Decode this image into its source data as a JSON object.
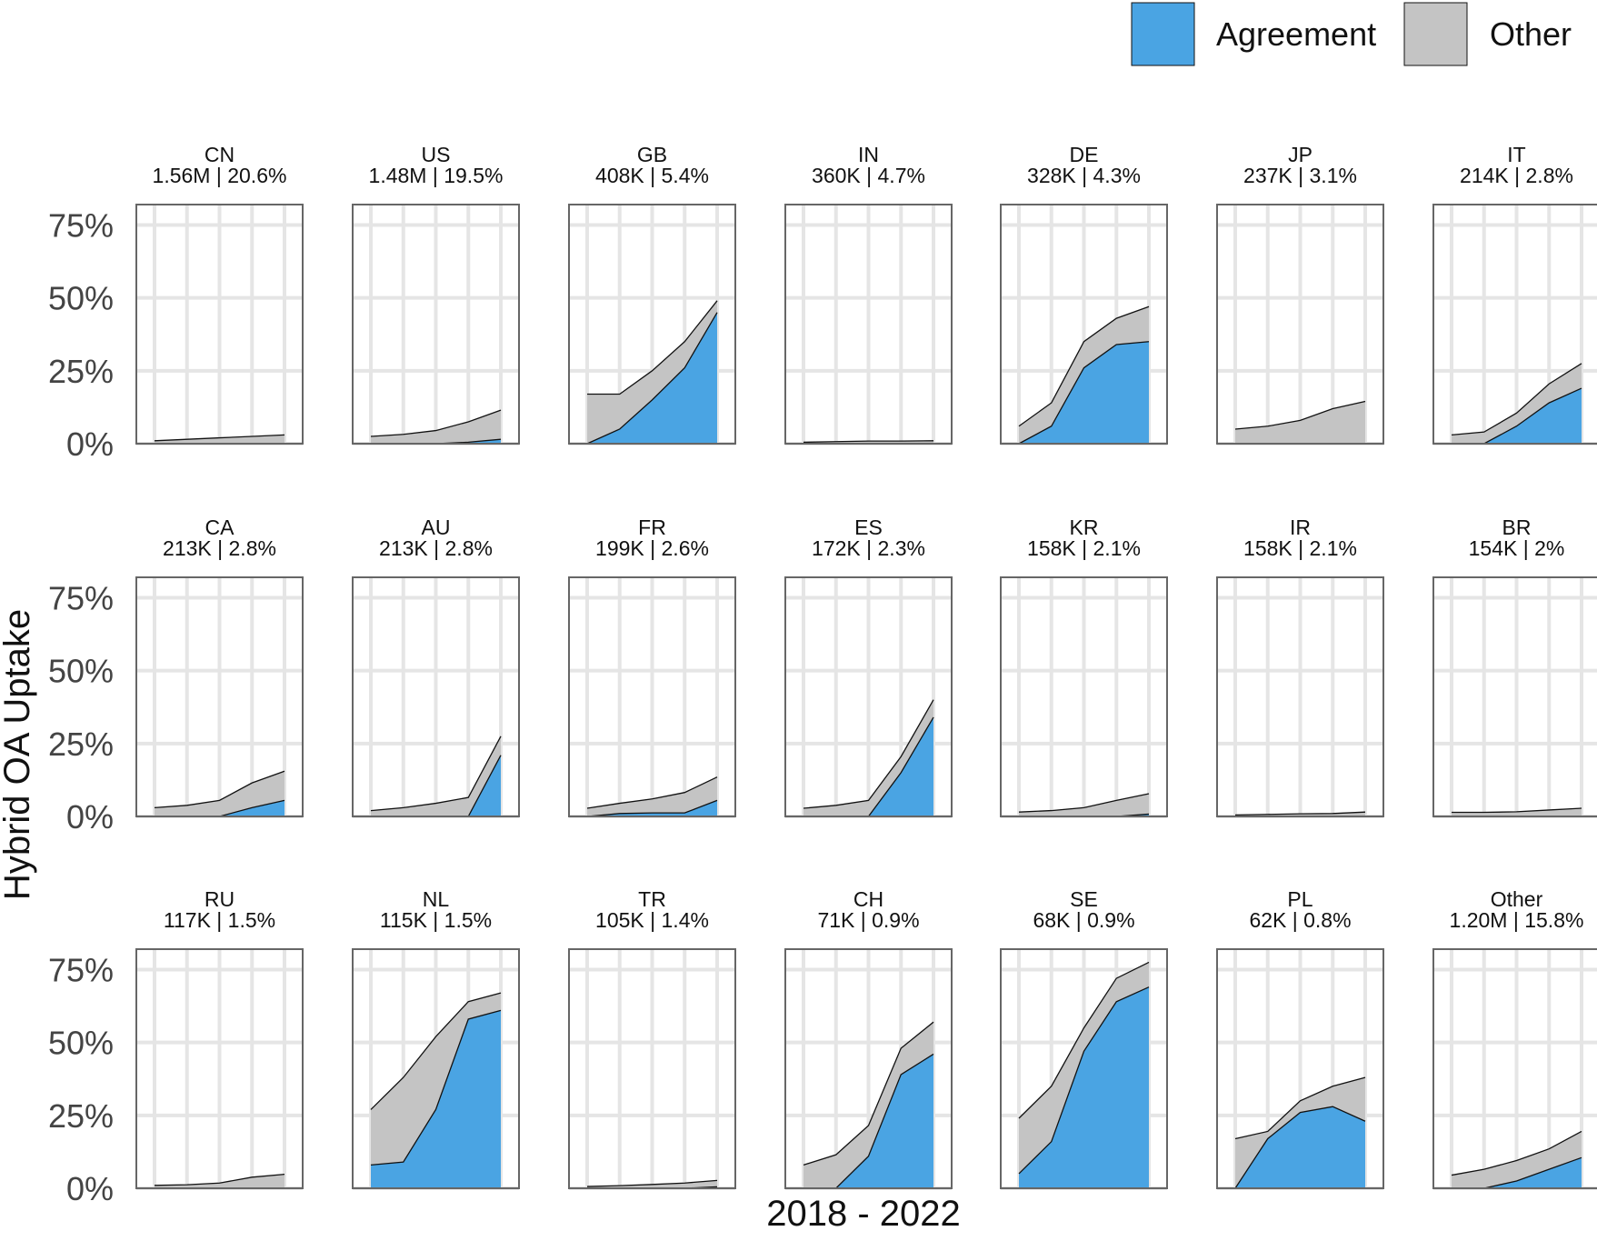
{
  "chart_data": {
    "type": "area",
    "stacked": true,
    "legend": {
      "position": "top-right",
      "entries": [
        {
          "name": "Agreement",
          "color": "#4AA4E3"
        },
        {
          "name": "Other",
          "color": "#C4C4C4"
        }
      ]
    },
    "xlabel": "2018 - 2022",
    "ylabel": "Hybrid OA Uptake",
    "x": [
      2018,
      2019,
      2020,
      2021,
      2022
    ],
    "ylim": [
      0,
      0.82
    ],
    "yticks": [
      0,
      0.25,
      0.5,
      0.75
    ],
    "ytick_labels": [
      "0%",
      "25%",
      "50%",
      "75%"
    ],
    "grid": true,
    "facets": [
      {
        "country": "CN",
        "summary": "1.56M | 20.6%",
        "agreement": [
          0,
          0,
          0,
          0,
          0
        ],
        "other": [
          0.01,
          0.015,
          0.02,
          0.025,
          0.03
        ]
      },
      {
        "country": "US",
        "summary": "1.48M | 19.5%",
        "agreement": [
          0,
          0,
          0,
          0.005,
          0.015
        ],
        "other": [
          0.025,
          0.032,
          0.045,
          0.07,
          0.1
        ]
      },
      {
        "country": "GB",
        "summary": "408K | 5.4%",
        "agreement": [
          0,
          0.05,
          0.15,
          0.26,
          0.45
        ],
        "other": [
          0.17,
          0.12,
          0.1,
          0.09,
          0.04
        ]
      },
      {
        "country": "IN",
        "summary": "360K | 4.7%",
        "agreement": [
          0,
          0,
          0,
          0,
          0
        ],
        "other": [
          0.005,
          0.007,
          0.009,
          0.009,
          0.01
        ]
      },
      {
        "country": "DE",
        "summary": "328K | 4.3%",
        "agreement": [
          0,
          0.06,
          0.26,
          0.34,
          0.35
        ],
        "other": [
          0.06,
          0.08,
          0.09,
          0.09,
          0.12
        ]
      },
      {
        "country": "JP",
        "summary": "237K | 3.1%",
        "agreement": [
          0,
          0,
          0,
          0,
          0
        ],
        "other": [
          0.05,
          0.06,
          0.08,
          0.12,
          0.145
        ]
      },
      {
        "country": "IT",
        "summary": "214K | 2.8%",
        "agreement": [
          0,
          0,
          0.06,
          0.14,
          0.19
        ],
        "other": [
          0.03,
          0.04,
          0.045,
          0.065,
          0.085
        ]
      },
      {
        "country": "CA",
        "summary": "213K | 2.8%",
        "agreement": [
          0,
          0,
          0,
          0.03,
          0.055
        ],
        "other": [
          0.03,
          0.038,
          0.055,
          0.085,
          0.1
        ]
      },
      {
        "country": "AU",
        "summary": "213K | 2.8%",
        "agreement": [
          0,
          0,
          0,
          0,
          0.21
        ],
        "other": [
          0.02,
          0.03,
          0.045,
          0.065,
          0.065
        ]
      },
      {
        "country": "FR",
        "summary": "199K | 2.6%",
        "agreement": [
          0,
          0.01,
          0.012,
          0.012,
          0.055
        ],
        "other": [
          0.028,
          0.035,
          0.048,
          0.07,
          0.08
        ]
      },
      {
        "country": "ES",
        "summary": "172K | 2.3%",
        "agreement": [
          0,
          0,
          0,
          0.15,
          0.34
        ],
        "other": [
          0.028,
          0.038,
          0.055,
          0.055,
          0.06
        ]
      },
      {
        "country": "KR",
        "summary": "158K | 2.1%",
        "agreement": [
          0,
          0,
          0,
          0,
          0.008
        ],
        "other": [
          0.015,
          0.02,
          0.03,
          0.055,
          0.07
        ]
      },
      {
        "country": "IR",
        "summary": "158K | 2.1%",
        "agreement": [
          0,
          0,
          0,
          0,
          0
        ],
        "other": [
          0.005,
          0.007,
          0.009,
          0.01,
          0.015
        ]
      },
      {
        "country": "BR",
        "summary": "154K | 2%",
        "agreement": [
          0,
          0,
          0,
          0,
          0
        ],
        "other": [
          0.014,
          0.014,
          0.016,
          0.022,
          0.028
        ]
      },
      {
        "country": "RU",
        "summary": "117K | 1.5%",
        "agreement": [
          0,
          0,
          0,
          0,
          0
        ],
        "other": [
          0.01,
          0.012,
          0.018,
          0.038,
          0.048
        ]
      },
      {
        "country": "NL",
        "summary": "115K | 1.5%",
        "agreement": [
          0.08,
          0.09,
          0.27,
          0.58,
          0.61
        ],
        "other": [
          0.19,
          0.29,
          0.25,
          0.06,
          0.06
        ]
      },
      {
        "country": "TR",
        "summary": "105K | 1.4%",
        "agreement": [
          0,
          0,
          0,
          0,
          0.005
        ],
        "other": [
          0.006,
          0.009,
          0.013,
          0.018,
          0.022
        ]
      },
      {
        "country": "CH",
        "summary": "71K | 0.9%",
        "agreement": [
          0,
          0,
          0.11,
          0.39,
          0.46
        ],
        "other": [
          0.08,
          0.115,
          0.105,
          0.09,
          0.11
        ]
      },
      {
        "country": "SE",
        "summary": "68K | 0.9%",
        "agreement": [
          0.05,
          0.16,
          0.47,
          0.64,
          0.69
        ],
        "other": [
          0.19,
          0.19,
          0.08,
          0.08,
          0.085
        ]
      },
      {
        "country": "PL",
        "summary": "62K | 0.8%",
        "agreement": [
          0,
          0.17,
          0.26,
          0.28,
          0.23
        ],
        "other": [
          0.17,
          0.025,
          0.04,
          0.07,
          0.15
        ]
      },
      {
        "country": "Other",
        "summary": "1.20M | 15.8%",
        "agreement": [
          0,
          0,
          0.025,
          0.065,
          0.105
        ],
        "other": [
          0.045,
          0.065,
          0.07,
          0.07,
          0.09
        ]
      }
    ]
  }
}
